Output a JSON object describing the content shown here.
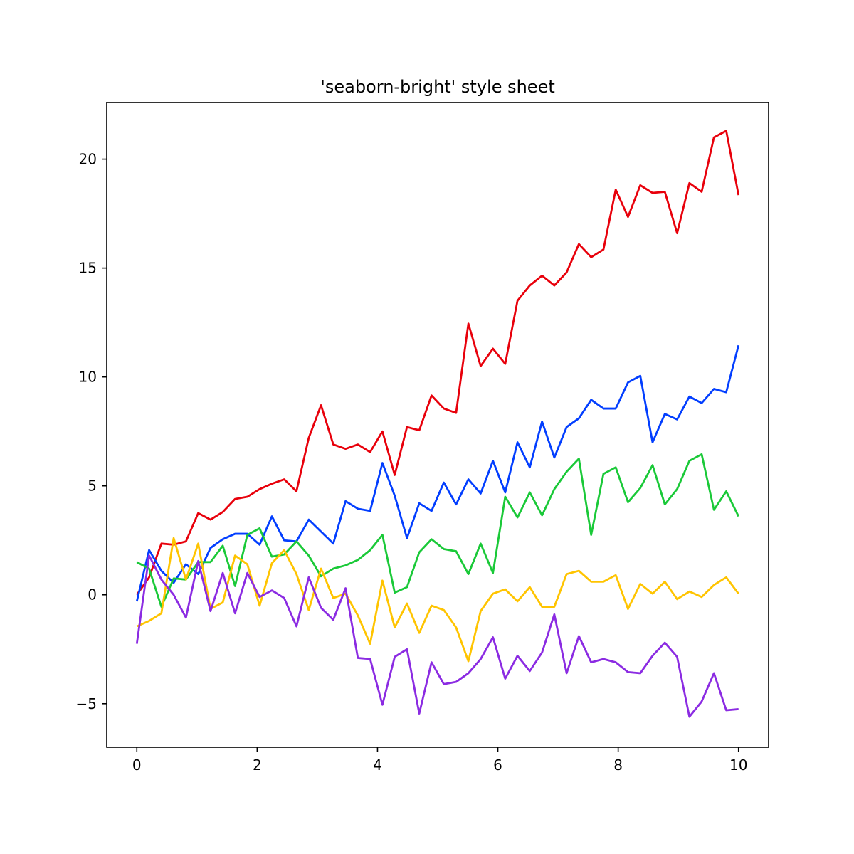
{
  "chart_data": {
    "type": "line",
    "title": "'seaborn-bright' style sheet",
    "xlabel": "",
    "ylabel": "",
    "xlim": [
      -0.5,
      10.5
    ],
    "ylim": [
      -7,
      22.6
    ],
    "xticks": [
      0,
      2,
      4,
      6,
      8,
      10
    ],
    "yticks": [
      -5,
      0,
      5,
      10,
      15,
      20
    ],
    "xtick_labels": [
      "0",
      "2",
      "4",
      "6",
      "8",
      "10"
    ],
    "ytick_labels": [
      "−5",
      "0",
      "5",
      "10",
      "15",
      "20"
    ],
    "grid": false,
    "legend": "none",
    "x_start": 0,
    "x_step": 0.2040816,
    "series": [
      {
        "color": "#e8000b",
        "values": [
          0.0,
          0.8,
          2.35,
          2.3,
          2.45,
          3.75,
          3.45,
          3.8,
          4.4,
          4.5,
          4.85,
          5.1,
          5.3,
          4.75,
          7.2,
          8.7,
          6.9,
          6.7,
          6.9,
          6.55,
          7.5,
          5.5,
          7.7,
          7.55,
          9.15,
          8.55,
          8.35,
          12.45,
          10.5,
          11.3,
          10.6,
          13.5,
          14.2,
          14.65,
          14.2,
          14.8,
          16.1,
          15.5,
          15.85,
          18.6,
          17.35,
          18.8,
          18.45,
          18.5,
          16.6,
          18.9,
          18.5,
          21.0,
          21.3,
          18.35
        ]
      },
      {
        "color": "#023eff",
        "values": [
          -0.3,
          2.05,
          1.1,
          0.55,
          1.4,
          0.95,
          2.15,
          2.55,
          2.8,
          2.8,
          2.3,
          3.6,
          2.5,
          2.45,
          3.45,
          2.9,
          2.35,
          4.3,
          3.95,
          3.85,
          6.05,
          4.55,
          2.6,
          4.2,
          3.85,
          5.15,
          4.15,
          5.3,
          4.65,
          6.15,
          4.7,
          7.0,
          5.85,
          7.95,
          6.3,
          7.7,
          8.1,
          8.95,
          8.55,
          8.55,
          9.75,
          10.05,
          7.0,
          8.3,
          8.05,
          9.1,
          8.8,
          9.45,
          9.3,
          11.45
        ]
      },
      {
        "color": "#1ac938",
        "values": [
          1.5,
          1.2,
          -0.55,
          0.75,
          0.7,
          1.5,
          1.5,
          2.25,
          0.4,
          2.75,
          3.05,
          1.75,
          1.85,
          2.45,
          1.8,
          0.85,
          1.2,
          1.35,
          1.6,
          2.05,
          2.75,
          0.1,
          0.35,
          1.95,
          2.55,
          2.1,
          2.0,
          0.95,
          2.35,
          1.0,
          4.5,
          3.55,
          4.7,
          3.65,
          4.85,
          5.65,
          6.25,
          2.75,
          5.55,
          5.85,
          4.25,
          4.9,
          5.95,
          4.15,
          4.85,
          6.15,
          6.45,
          3.9,
          4.75,
          3.6
        ]
      },
      {
        "color": "#ffc400",
        "values": [
          -1.45,
          -1.2,
          -0.85,
          2.6,
          0.7,
          2.35,
          -0.65,
          -0.35,
          1.8,
          1.4,
          -0.5,
          1.45,
          2.05,
          0.95,
          -0.7,
          1.2,
          -0.15,
          0.05,
          -0.95,
          -2.25,
          0.65,
          -1.5,
          -0.4,
          -1.75,
          -0.5,
          -0.7,
          -1.5,
          -3.05,
          -0.75,
          0.05,
          0.25,
          -0.3,
          0.35,
          -0.55,
          -0.55,
          0.95,
          1.1,
          0.6,
          0.6,
          0.9,
          -0.65,
          0.5,
          0.05,
          0.6,
          -0.2,
          0.15,
          -0.1,
          0.45,
          0.8,
          0.05
        ]
      },
      {
        "color": "#8b2be2",
        "values": [
          -2.25,
          1.8,
          0.7,
          0.0,
          -1.05,
          1.55,
          -0.75,
          1.0,
          -0.85,
          1.0,
          -0.1,
          0.2,
          -0.15,
          -1.45,
          0.8,
          -0.6,
          -1.15,
          0.3,
          -2.9,
          -2.95,
          -5.05,
          -2.85,
          -2.5,
          -5.45,
          -3.1,
          -4.1,
          -4.0,
          -3.6,
          -2.95,
          -1.95,
          -3.85,
          -2.8,
          -3.5,
          -2.65,
          -0.9,
          -3.6,
          -1.9,
          -3.1,
          -2.95,
          -3.1,
          -3.55,
          -3.6,
          -2.8,
          -2.2,
          -2.85,
          -5.6,
          -4.9,
          -3.6,
          -5.3,
          -5.25
        ]
      }
    ]
  }
}
